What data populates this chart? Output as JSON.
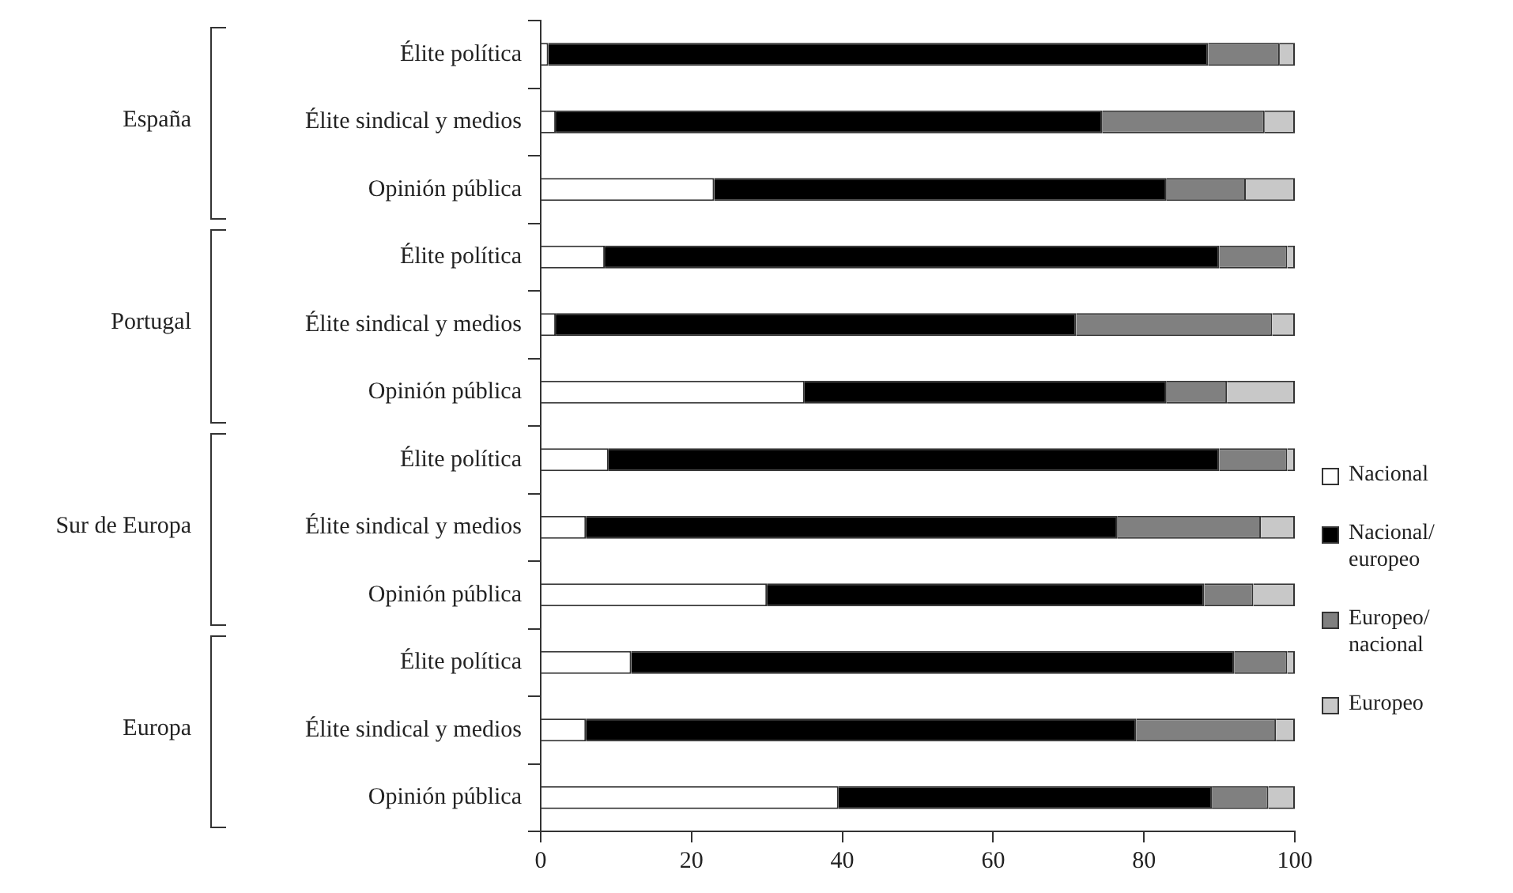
{
  "chart_data": {
    "type": "bar",
    "orientation": "horizontal",
    "stacked": true,
    "categories": [
      "Élite política",
      "Élite sindical y medios",
      "Opinión pública",
      "Élite política",
      "Élite sindical y medios",
      "Opinión pública",
      "Élite política",
      "Élite sindical y medios",
      "Opinión pública",
      "Élite política",
      "Élite sindical y medios",
      "Opinión pública"
    ],
    "series": [
      {
        "name": "Nacional",
        "color": "#ffffff",
        "values": [
          1,
          2,
          23,
          8.5,
          2,
          35,
          9,
          6,
          30,
          12,
          6,
          39.5
        ]
      },
      {
        "name": "Nacional/ europeo",
        "color": "#000000",
        "values": [
          87.5,
          72.5,
          60,
          81.5,
          69,
          48,
          81,
          70.5,
          58,
          80,
          73,
          49.5
        ]
      },
      {
        "name": "Europeo/ nacional",
        "color": "#808080",
        "values": [
          9.5,
          21.5,
          10.5,
          9,
          26,
          8,
          9,
          19,
          6.5,
          7,
          18.5,
          7.5
        ]
      },
      {
        "name": "Europeo",
        "color": "#c8c8c8",
        "values": [
          2,
          4,
          6.5,
          1,
          3,
          9,
          1,
          4.5,
          5.5,
          1,
          2.5,
          3.5
        ]
      }
    ],
    "annotations": [
      "España",
      "Portugal",
      "Sur de Europa",
      "Europa"
    ],
    "xlim": [
      0,
      100
    ],
    "xticks": [
      0,
      20,
      40,
      60,
      80,
      100
    ],
    "grid": false,
    "legend": "right"
  }
}
